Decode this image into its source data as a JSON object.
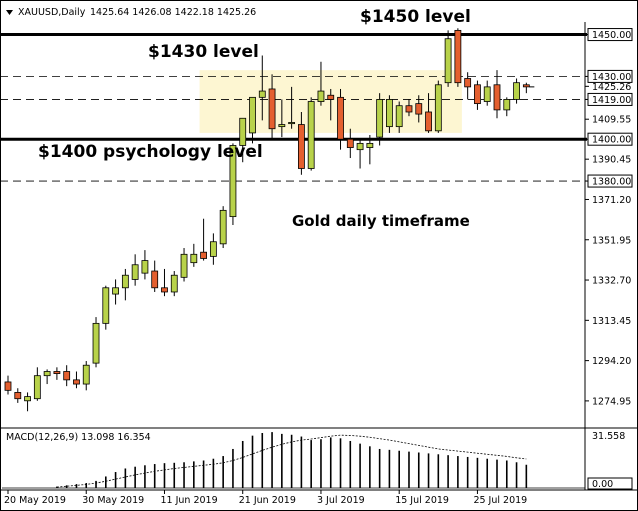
{
  "header": {
    "dropdown_icon": "triangle-down-icon",
    "symbol": "XAUUSD,Daily",
    "ohlc": "1425.64 1426.08 1422.18 1425.26"
  },
  "colors": {
    "bull": "#b8d24a",
    "bear": "#e45f2f",
    "highlight": "#fdf6d2",
    "macd_bar": "#000000"
  },
  "chart_data": [
    {
      "type": "candlestick",
      "title": "Gold daily timeframe",
      "y_ticks": [
        "1450.00",
        "1430.00",
        "1425.26",
        "1419.00",
        "1409.55",
        "1400.00",
        "1390.45",
        "1380.00",
        "1371.20",
        "1351.95",
        "1332.70",
        "1313.45",
        "1294.20",
        "1274.95"
      ],
      "x_ticks": [
        "20 May 2019",
        "30 May 2019",
        "11 Jun 2019",
        "21 Jun 2019",
        "3 Jul 2019",
        "15 Jul 2019",
        "25 Jul 2019"
      ],
      "ylim": [
        1262,
        1456
      ],
      "levels": [
        {
          "value": 1450,
          "label": "1450.00",
          "style": "solid-thick"
        },
        {
          "value": 1430,
          "label": "1430.00",
          "style": "dashed"
        },
        {
          "value": 1419,
          "label": "1419.00",
          "style": "dashed"
        },
        {
          "value": 1400,
          "label": "1400.00",
          "style": "solid-thick"
        },
        {
          "value": 1380,
          "label": "1380.00",
          "style": "dashed"
        }
      ],
      "current_price": "1425.26",
      "annotations": [
        {
          "text": "$1450 level"
        },
        {
          "text": "$1430 level"
        },
        {
          "text": "$1400 psychology level"
        },
        {
          "text": "Gold daily timeframe"
        }
      ],
      "highlight_zone": [
        1403,
        1433
      ],
      "candles": [
        {
          "o": 1284,
          "h": 1287,
          "l": 1278,
          "c": 1280
        },
        {
          "o": 1279,
          "h": 1281,
          "l": 1274,
          "c": 1276
        },
        {
          "o": 1275,
          "h": 1279,
          "l": 1270,
          "c": 1277
        },
        {
          "o": 1276,
          "h": 1291,
          "l": 1275,
          "c": 1287
        },
        {
          "o": 1287,
          "h": 1290,
          "l": 1283,
          "c": 1289
        },
        {
          "o": 1289,
          "h": 1291,
          "l": 1285,
          "c": 1288
        },
        {
          "o": 1289,
          "h": 1292,
          "l": 1282,
          "c": 1285
        },
        {
          "o": 1285,
          "h": 1289,
          "l": 1281,
          "c": 1283
        },
        {
          "o": 1283,
          "h": 1294,
          "l": 1280,
          "c": 1292
        },
        {
          "o": 1293,
          "h": 1315,
          "l": 1291,
          "c": 1312
        },
        {
          "o": 1312,
          "h": 1330,
          "l": 1309,
          "c": 1329
        },
        {
          "o": 1326,
          "h": 1333,
          "l": 1321,
          "c": 1329
        },
        {
          "o": 1329,
          "h": 1338,
          "l": 1323,
          "c": 1335
        },
        {
          "o": 1333,
          "h": 1345,
          "l": 1330,
          "c": 1340
        },
        {
          "o": 1336,
          "h": 1347,
          "l": 1333,
          "c": 1342
        },
        {
          "o": 1337,
          "h": 1342,
          "l": 1327,
          "c": 1329
        },
        {
          "o": 1329,
          "h": 1338,
          "l": 1325,
          "c": 1327
        },
        {
          "o": 1327,
          "h": 1337,
          "l": 1325,
          "c": 1335
        },
        {
          "o": 1334,
          "h": 1348,
          "l": 1332,
          "c": 1345
        },
        {
          "o": 1341,
          "h": 1350,
          "l": 1339,
          "c": 1345
        },
        {
          "o": 1346,
          "h": 1362,
          "l": 1342,
          "c": 1343
        },
        {
          "o": 1344,
          "h": 1355,
          "l": 1340,
          "c": 1351
        },
        {
          "o": 1350,
          "h": 1368,
          "l": 1348,
          "c": 1366
        },
        {
          "o": 1363,
          "h": 1398,
          "l": 1359,
          "c": 1397
        },
        {
          "o": 1397,
          "h": 1410,
          "l": 1389,
          "c": 1410
        },
        {
          "o": 1403,
          "h": 1420,
          "l": 1398,
          "c": 1420
        },
        {
          "o": 1420,
          "h": 1440,
          "l": 1409,
          "c": 1423
        },
        {
          "o": 1424,
          "h": 1431,
          "l": 1400,
          "c": 1405
        },
        {
          "o": 1406,
          "h": 1419,
          "l": 1401,
          "c": 1407
        },
        {
          "o": 1408,
          "h": 1425,
          "l": 1405,
          "c": 1408
        },
        {
          "o": 1407,
          "h": 1413,
          "l": 1383,
          "c": 1386
        },
        {
          "o": 1386,
          "h": 1420,
          "l": 1385,
          "c": 1418
        },
        {
          "o": 1418,
          "h": 1437,
          "l": 1416,
          "c": 1423
        },
        {
          "o": 1421,
          "h": 1424,
          "l": 1409,
          "c": 1419
        },
        {
          "o": 1420,
          "h": 1424,
          "l": 1395,
          "c": 1400
        },
        {
          "o": 1400,
          "h": 1405,
          "l": 1391,
          "c": 1396
        },
        {
          "o": 1395,
          "h": 1400,
          "l": 1386,
          "c": 1398
        },
        {
          "o": 1396,
          "h": 1402,
          "l": 1388,
          "c": 1398
        },
        {
          "o": 1401,
          "h": 1422,
          "l": 1397,
          "c": 1419
        },
        {
          "o": 1406,
          "h": 1421,
          "l": 1403,
          "c": 1419
        },
        {
          "o": 1406,
          "h": 1418,
          "l": 1403,
          "c": 1416
        },
        {
          "o": 1416,
          "h": 1419,
          "l": 1411,
          "c": 1413
        },
        {
          "o": 1417,
          "h": 1421,
          "l": 1408,
          "c": 1412
        },
        {
          "o": 1413,
          "h": 1422,
          "l": 1403,
          "c": 1404
        },
        {
          "o": 1404,
          "h": 1428,
          "l": 1403,
          "c": 1426
        },
        {
          "o": 1427,
          "h": 1452,
          "l": 1425,
          "c": 1448
        },
        {
          "o": 1452,
          "h": 1453,
          "l": 1425,
          "c": 1427
        },
        {
          "o": 1429,
          "h": 1432,
          "l": 1419,
          "c": 1425
        },
        {
          "o": 1426,
          "h": 1428,
          "l": 1414,
          "c": 1417
        },
        {
          "o": 1418,
          "h": 1428,
          "l": 1416,
          "c": 1425
        },
        {
          "o": 1426,
          "h": 1433,
          "l": 1410,
          "c": 1414
        },
        {
          "o": 1414,
          "h": 1420,
          "l": 1411,
          "c": 1419
        },
        {
          "o": 1419,
          "h": 1429,
          "l": 1417,
          "c": 1427
        },
        {
          "o": 1426,
          "h": 1427,
          "l": 1422,
          "c": 1425
        }
      ]
    },
    {
      "type": "bar",
      "title": "MACD(12,26,9) 13.098 16.354",
      "label": "MACD(12,26,9)",
      "values_text": "13.098 16.354",
      "y_ticks": [
        "31.558",
        "0.00"
      ],
      "ylim": [
        0,
        31.558
      ],
      "macd_start_index": 5,
      "macd": [
        0.8,
        1.5,
        2.2,
        2.8,
        4.0,
        6.5,
        9.0,
        11.0,
        12.0,
        12.8,
        13.5,
        14.0,
        14.2,
        14.5,
        15.0,
        15.5,
        16.5,
        18.0,
        22.0,
        26.5,
        29.5,
        31.0,
        31.5,
        30.5,
        30.0,
        29.0,
        27.0,
        27.5,
        28.5,
        28.0,
        26.5,
        25.0,
        23.5,
        22.0,
        21.5,
        21.0,
        20.5,
        20.0,
        19.5,
        19.0,
        18.5,
        18.0,
        17.5,
        17.0,
        16.5,
        16.0,
        15.5,
        14.5,
        13.1
      ],
      "signal": [
        0.5,
        1.0,
        1.5,
        2.0,
        2.8,
        3.8,
        5.0,
        6.2,
        7.4,
        8.4,
        9.4,
        10.2,
        11.0,
        11.6,
        12.2,
        12.8,
        13.4,
        14.2,
        15.5,
        17.2,
        19.2,
        21.2,
        23.0,
        24.6,
        26.0,
        27.0,
        27.6,
        28.4,
        29.2,
        29.8,
        29.6,
        29.2,
        28.6,
        27.8,
        27.0,
        26.0,
        25.0,
        24.0,
        23.0,
        22.0,
        21.4,
        20.8,
        20.2,
        19.6,
        19.0,
        18.4,
        17.8,
        17.0,
        16.354
      ]
    }
  ]
}
